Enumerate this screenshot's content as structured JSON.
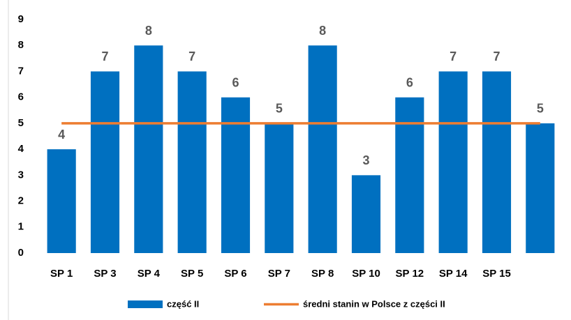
{
  "chart_data": {
    "type": "bar",
    "categories": [
      "SP 1",
      "SP 3",
      "SP 4",
      "SP 5",
      "SP 6",
      "SP 7",
      "SP 8",
      "SP 10",
      "SP 12",
      "SP 14",
      "SP 15",
      null
    ],
    "series": [
      {
        "name": "część II",
        "type": "bar",
        "color": "#0070c0",
        "values": [
          4,
          7,
          8,
          7,
          6,
          5,
          8,
          3,
          6,
          7,
          7,
          5
        ]
      },
      {
        "name": "średni stanin w Polsce z części II",
        "type": "line",
        "color": "#ed7d31",
        "values": [
          5,
          5,
          5,
          5,
          5,
          5,
          5,
          5,
          5,
          5,
          5,
          5
        ]
      }
    ],
    "ylim": [
      0,
      9
    ],
    "yticks": [
      0,
      1,
      2,
      3,
      4,
      5,
      6,
      7,
      8,
      9
    ],
    "grid": false,
    "legend": "bottom",
    "data_labels": true
  }
}
